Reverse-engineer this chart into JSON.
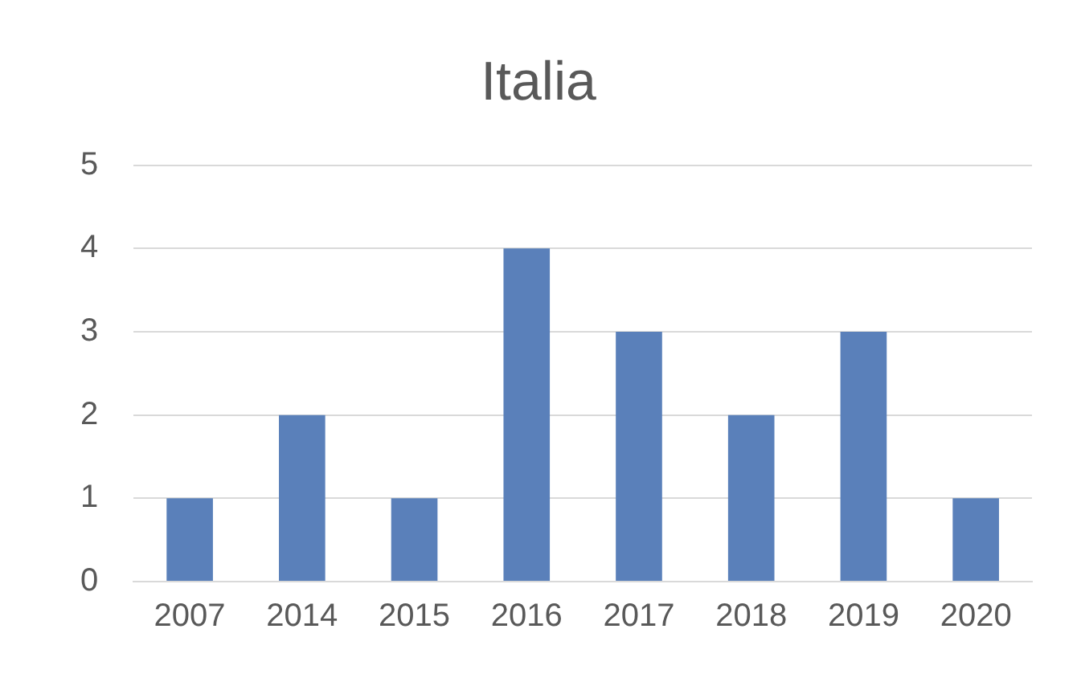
{
  "chart_data": {
    "type": "bar",
    "title": "Italia",
    "categories": [
      "2007",
      "2014",
      "2015",
      "2016",
      "2017",
      "2018",
      "2019",
      "2020"
    ],
    "values": [
      1,
      2,
      1,
      4,
      3,
      2,
      3,
      1
    ],
    "color": "#5a80ba",
    "ylim": [
      0,
      5
    ],
    "yticks": [
      0,
      1,
      2,
      3,
      4,
      5
    ],
    "grid": "y",
    "legend": false
  }
}
